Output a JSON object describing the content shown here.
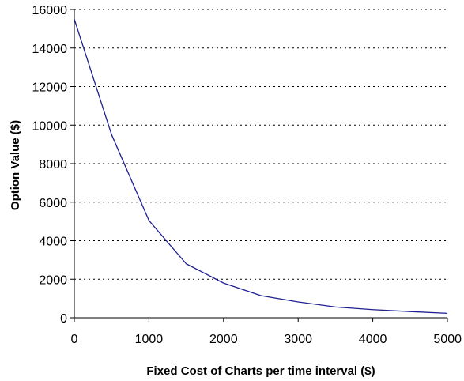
{
  "chart_data": {
    "type": "line",
    "title": "",
    "xlabel": "Fixed Cost of Charts per time interval ($)",
    "ylabel": "Option Value ($)",
    "xlim": [
      0,
      5000
    ],
    "ylim": [
      0,
      16000
    ],
    "x_ticks": [
      0,
      1000,
      2000,
      3000,
      4000,
      5000
    ],
    "y_ticks": [
      0,
      2000,
      4000,
      6000,
      8000,
      10000,
      12000,
      14000,
      16000
    ],
    "x_tick_labels": [
      "0",
      "1000",
      "2000",
      "3000",
      "4000",
      "5000"
    ],
    "y_tick_labels": [
      "0",
      "2000",
      "4000",
      "6000",
      "8000",
      "10000",
      "12000",
      "14000",
      "16000"
    ],
    "grid": "horizontal-dashed",
    "legend": "none",
    "series": [
      {
        "color": "#1f1f8f",
        "x": [
          0,
          500,
          1000,
          1500,
          2000,
          2500,
          3000,
          3500,
          4000,
          4500,
          5000
        ],
        "values": [
          15500,
          9500,
          5050,
          2800,
          1800,
          1150,
          820,
          560,
          420,
          320,
          230
        ]
      }
    ]
  }
}
